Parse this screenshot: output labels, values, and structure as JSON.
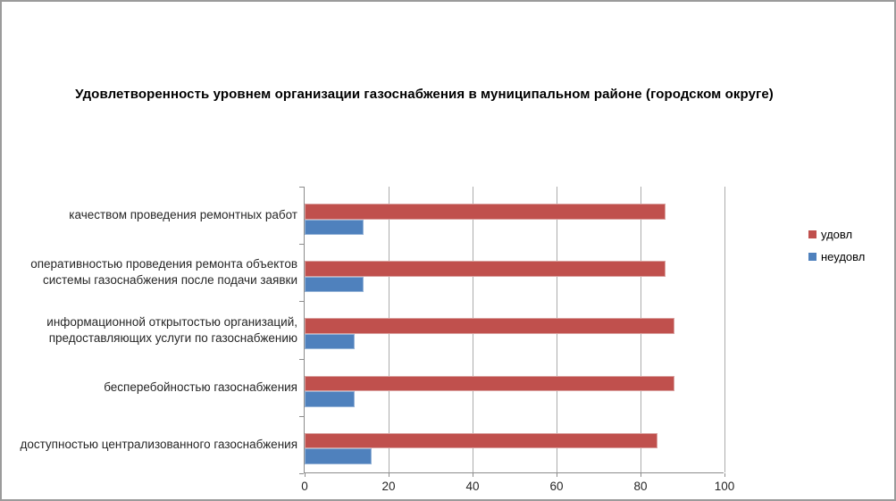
{
  "chart_data": {
    "type": "bar",
    "orientation": "horizontal",
    "title": "Удовлетворенность уровнем организации газоснабжения в муниципальном районе (городском округе)",
    "categories": [
      "качеством проведения ремонтных работ",
      "оперативностью проведения ремонта объектов системы газоснабжения после подачи заявки",
      "информационной открытостью организаций, предоставляющих услуги по газоснабжению",
      "бесперебойностью газоснабжения",
      "доступностью централизованного газоснабжения"
    ],
    "category_order": "top-to-bottom",
    "series": [
      {
        "name": "удовл",
        "color": "#C0504D",
        "border_color": "#D9A09E",
        "values": [
          86,
          86,
          88,
          88,
          84
        ]
      },
      {
        "name": "неудовл",
        "color": "#4F81BD",
        "border_color": "#95B3D7",
        "values": [
          14,
          14,
          12,
          12,
          16
        ]
      }
    ],
    "xlim": [
      0,
      100
    ],
    "x_ticks": [
      0,
      20,
      40,
      60,
      80,
      100
    ],
    "grid": true,
    "legend_position": "right"
  },
  "colors": {
    "background": "#FFFFFF",
    "frame_border": "#9B9B9B",
    "gridline": "#ACACAC",
    "axis_line": "#8C8C8C",
    "label_text": "#262626",
    "title_text": "#000000"
  }
}
